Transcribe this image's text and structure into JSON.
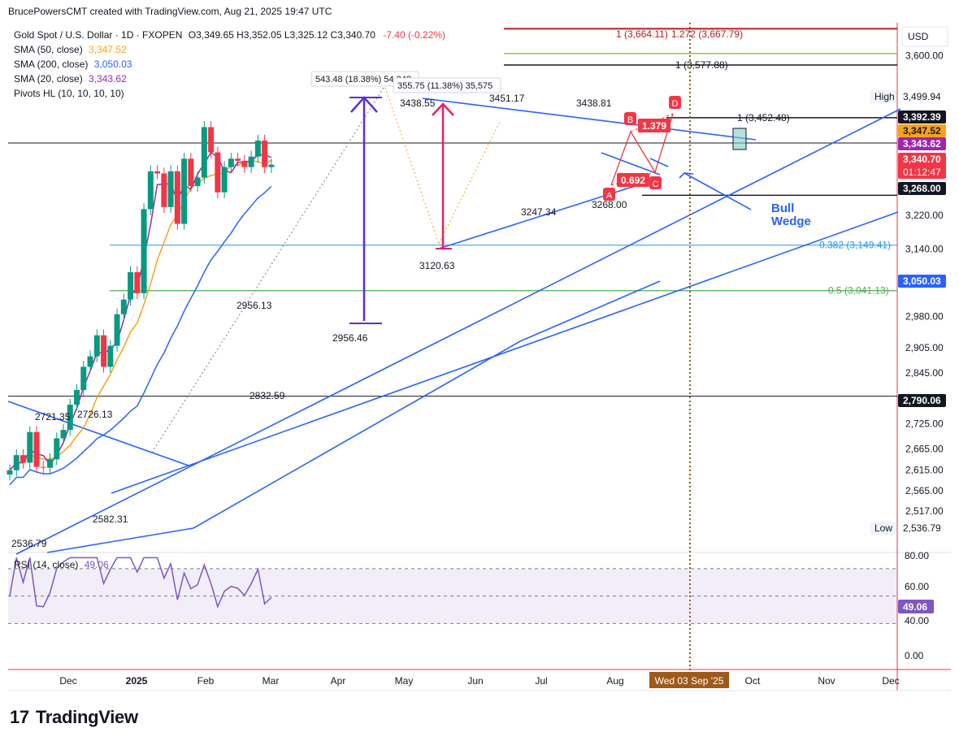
{
  "header": {
    "created_by": "BrucePowersCMT created with TradingView.com, Aug 21, 2025 19:47 UTC"
  },
  "legend": {
    "symbol": "Gold Spot / U.S. Dollar · 1D · FXOPEN",
    "ohlc": "O3,349.65  H3,352.05  L3,325.12  C3,340.70",
    "change": "-7.40 (-0.22%)",
    "sma50_label": "SMA (50, close)",
    "sma50_value": "3,347.52",
    "sma200_label": "SMA (200, close)",
    "sma200_value": "3,050.03",
    "sma20_label": "SMA (20, close)",
    "sma20_value": "3,343.62",
    "pivots_label": "Pivots HL (10, 10, 10, 10)"
  },
  "rsi_legend": {
    "label": "RSI (14, close)",
    "value": "49.06"
  },
  "logo": {
    "text": "TradingView",
    "mark": "17"
  },
  "colors": {
    "up": "#089981",
    "down": "#f23645",
    "sma50": "#f7a21b",
    "sma200": "#2962ff",
    "sma20": "#9c27b0",
    "trend": "#2962ff",
    "rsi": "#7e57c2",
    "price_tag": "#f23645",
    "purple_arrow": "#5b2ed6",
    "pink_arrow": "#e91e63",
    "harmonic": "#f23645"
  },
  "chart_data": {
    "type": "candlestick",
    "symbol": "XAUUSD",
    "timeframe": "1D",
    "ylim": [
      2500,
      3700
    ],
    "y_axis_unit": "USD",
    "y_ticks": [
      3600,
      3499.94,
      3220,
      3140,
      2980,
      2905,
      2845,
      2725,
      2665,
      2615,
      2565,
      2517
    ],
    "y_tick_labels": [
      "3,600.00",
      "3,499.94",
      "3,220.00",
      "3,140.00",
      "2,980.00",
      "2,905.00",
      "2,845.00",
      "2,725.00",
      "2,665.00",
      "2,615.00",
      "2,565.00",
      "2,517.00"
    ],
    "x_labels": [
      "Dec",
      "2025",
      "Feb",
      "Mar",
      "Apr",
      "May",
      "Jun",
      "Jul",
      "Aug",
      "Oct",
      "Nov",
      "Dec"
    ],
    "cursor_date_label": "Wed 03 Sep '25",
    "close_series": [
      {
        "date": "2024-11-18",
        "close": 2614
      },
      {
        "date": "2024-11-25",
        "close": 2650
      },
      {
        "date": "2024-12-02",
        "close": 2632
      },
      {
        "date": "2024-12-09",
        "close": 2705
      },
      {
        "date": "2024-12-16",
        "close": 2622
      },
      {
        "date": "2024-12-23",
        "close": 2620
      },
      {
        "date": "2024-12-30",
        "close": 2640
      },
      {
        "date": "2025-01-06",
        "close": 2690
      },
      {
        "date": "2025-01-13",
        "close": 2710
      },
      {
        "date": "2025-01-20",
        "close": 2770
      },
      {
        "date": "2025-01-27",
        "close": 2805
      },
      {
        "date": "2025-02-03",
        "close": 2860
      },
      {
        "date": "2025-02-10",
        "close": 2885
      },
      {
        "date": "2025-02-17",
        "close": 2935
      },
      {
        "date": "2025-02-24",
        "close": 2860
      },
      {
        "date": "2025-03-03",
        "close": 2910
      },
      {
        "date": "2025-03-10",
        "close": 2985
      },
      {
        "date": "2025-03-17",
        "close": 3020
      },
      {
        "date": "2025-03-24",
        "close": 3085
      },
      {
        "date": "2025-03-31",
        "close": 3035
      },
      {
        "date": "2025-04-07",
        "close": 3235
      },
      {
        "date": "2025-04-14",
        "close": 3325
      },
      {
        "date": "2025-04-21",
        "close": 3320
      },
      {
        "date": "2025-04-28",
        "close": 3240
      },
      {
        "date": "2025-05-05",
        "close": 3325
      },
      {
        "date": "2025-05-12",
        "close": 3200
      },
      {
        "date": "2025-05-19",
        "close": 3355
      },
      {
        "date": "2025-05-26",
        "close": 3290
      },
      {
        "date": "2025-06-02",
        "close": 3310
      },
      {
        "date": "2025-06-09",
        "close": 3430
      },
      {
        "date": "2025-06-16",
        "close": 3370
      },
      {
        "date": "2025-06-23",
        "close": 3275
      },
      {
        "date": "2025-06-30",
        "close": 3335
      },
      {
        "date": "2025-07-07",
        "close": 3355
      },
      {
        "date": "2025-07-14",
        "close": 3350
      },
      {
        "date": "2025-07-21",
        "close": 3335
      },
      {
        "date": "2025-07-28",
        "close": 3360
      },
      {
        "date": "2025-08-04",
        "close": 3398
      },
      {
        "date": "2025-08-11",
        "close": 3335
      },
      {
        "date": "2025-08-18",
        "close": 3340.7
      }
    ],
    "indicators": {
      "sma50": 3347.52,
      "sma200": 3050.03,
      "sma20": 3343.62,
      "rsi14": 49.06,
      "rsi_range": [
        0,
        80
      ],
      "rsi_band": [
        30,
        70
      ],
      "rsi_ticks": [
        "80.00",
        "60.00",
        "40.00",
        "0.00"
      ]
    },
    "pivot_labels": [
      "3438.55",
      "3451.17",
      "3438.81",
      "3247.34",
      "3268.00",
      "3120.63",
      "2956.13",
      "2956.46",
      "2832.59",
      "2721.35",
      "2726.13",
      "2582.31",
      "2536.79"
    ],
    "horizontal_levels": [
      {
        "label": "1 (3,664.11)",
        "value": 3664.11
      },
      {
        "label": "1.272 (3,667.79)",
        "value": 3667.79
      },
      {
        "label": "1 (3,577.88)",
        "value": 3577.88
      },
      {
        "label": "1 (3,452.48)",
        "value": 3452.48
      },
      {
        "label": "0.382 (3,149.41)",
        "value": 3149.41
      },
      {
        "label": "0.5 (3,041.13)",
        "value": 3041.13
      },
      {
        "label": "",
        "value": 3392.39
      },
      {
        "label": "",
        "value": 3268.0
      },
      {
        "label": "",
        "value": 2790.06
      }
    ],
    "measurements": [
      "543.48 (18.38%) 54,348",
      "355.75 (11.38%) 35,575"
    ],
    "harmonic": {
      "points": [
        "A",
        "B",
        "C",
        "D"
      ],
      "ratios": [
        "1.379",
        "0.692"
      ]
    },
    "annotation": "Bull\nWedge",
    "price_tags": [
      {
        "value": 3392.39,
        "text": "3,392.39",
        "style": "dark"
      },
      {
        "value": 3347.52,
        "text": "3,347.52",
        "style": "sma50"
      },
      {
        "value": 3343.62,
        "text": "3,343.62",
        "style": "sma20"
      },
      {
        "value": 3340.7,
        "text": "3,340.70",
        "sub": "01:12:47",
        "style": "price"
      },
      {
        "value": 3268.0,
        "text": "3,268.00",
        "style": "dark"
      },
      {
        "value": 3050.03,
        "text": "3,050.03",
        "style": "sma200"
      },
      {
        "value": 2790.06,
        "text": "2,790.06",
        "style": "dark"
      },
      {
        "value": 3499.94,
        "text": "3,499.94",
        "label": "High",
        "style": "light"
      },
      {
        "value": 2536.79,
        "text": "2,536.79",
        "label": "Low",
        "style": "light"
      }
    ]
  }
}
